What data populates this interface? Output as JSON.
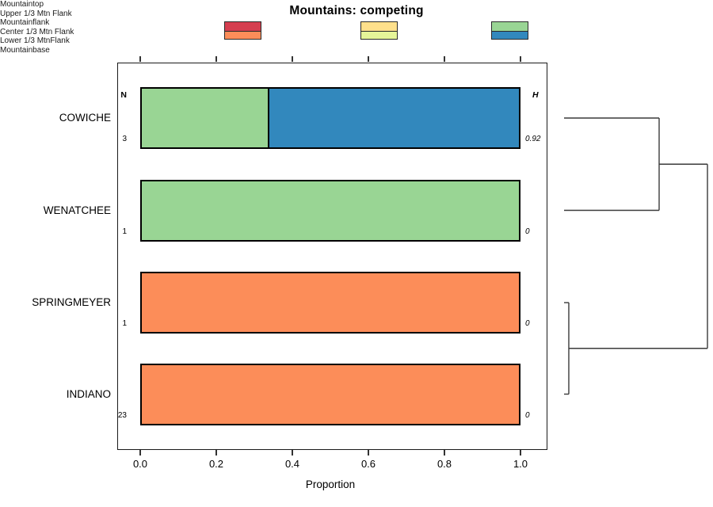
{
  "title": "Mountains: competing",
  "columns": {
    "n_header": "N",
    "h_header": "H"
  },
  "legend": {
    "items": [
      {
        "label": "Mountaintop",
        "color": "#D53E4F"
      },
      {
        "label": "Upper 1/3 Mtn Flank",
        "color": "#FC8D59"
      },
      {
        "label": "Mountainflank",
        "color": "#FEE08B"
      },
      {
        "label": "Center 1/3 Mtn Flank",
        "color": "#E6F598"
      },
      {
        "label": "Lower 1/3 MtnFlank",
        "color": "#99D594"
      },
      {
        "label": "Mountainbase",
        "color": "#3288BD"
      }
    ]
  },
  "chart_data": {
    "type": "bar",
    "orientation": "horizontal",
    "stacked": true,
    "title": "Mountains: competing",
    "xlabel": "Proportion",
    "xlim": [
      0,
      1
    ],
    "x_tick_labels": [
      "0.0",
      "0.2",
      "0.4",
      "0.6",
      "0.8",
      "1.0"
    ],
    "grid": false,
    "categories": [
      "COWICHE",
      "WENATCHEE",
      "SPRINGMEYER",
      "INDIANO"
    ],
    "n_values": [
      3,
      1,
      1,
      23
    ],
    "h_values": [
      "0.92",
      "0",
      "0",
      "0"
    ],
    "rows": [
      {
        "label": "COWICHE",
        "n": 3,
        "h": "0.92",
        "segments": [
          {
            "name": "Lower 1/3 MtnFlank",
            "value": 0.335
          },
          {
            "name": "Mountainbase",
            "value": 0.665
          }
        ]
      },
      {
        "label": "WENATCHEE",
        "n": 1,
        "h": "0",
        "segments": [
          {
            "name": "Lower 1/3 MtnFlank",
            "value": 1
          }
        ]
      },
      {
        "label": "SPRINGMEYER",
        "n": 1,
        "h": "0",
        "segments": [
          {
            "name": "Upper 1/3 Mtn Flank",
            "value": 1
          }
        ]
      },
      {
        "label": "INDIANO",
        "n": 23,
        "h": "0",
        "segments": [
          {
            "name": "Upper 1/3 Mtn Flank",
            "value": 1
          }
        ]
      }
    ],
    "series": [
      {
        "name": "Mountaintop",
        "color": "#D53E4F",
        "values": [
          0,
          0,
          0,
          0
        ]
      },
      {
        "name": "Upper 1/3 Mtn Flank",
        "color": "#FC8D59",
        "values": [
          0,
          0,
          1,
          1
        ]
      },
      {
        "name": "Mountainflank",
        "color": "#FEE08B",
        "values": [
          0,
          0,
          0,
          0
        ]
      },
      {
        "name": "Center 1/3 Mtn Flank",
        "color": "#E6F598",
        "values": [
          0,
          0,
          0,
          0
        ]
      },
      {
        "name": "Lower 1/3 MtnFlank",
        "color": "#99D594",
        "values": [
          0.335,
          1,
          0,
          0
        ]
      },
      {
        "name": "Mountainbase",
        "color": "#3288BD",
        "values": [
          0.665,
          0,
          0,
          0
        ]
      }
    ],
    "dendrogram": {
      "position": "right",
      "merges": [
        {
          "members": [
            "COWICHE",
            "WENATCHEE"
          ],
          "rel_height": 0.663
        },
        {
          "members": [
            "SPRINGMEYER",
            "INDIANO"
          ],
          "rel_height": 0.033
        },
        {
          "members": [
            "COWICHE+WENATCHEE",
            "SPRINGMEYER+INDIANO"
          ],
          "rel_height": 1.0
        }
      ]
    }
  }
}
